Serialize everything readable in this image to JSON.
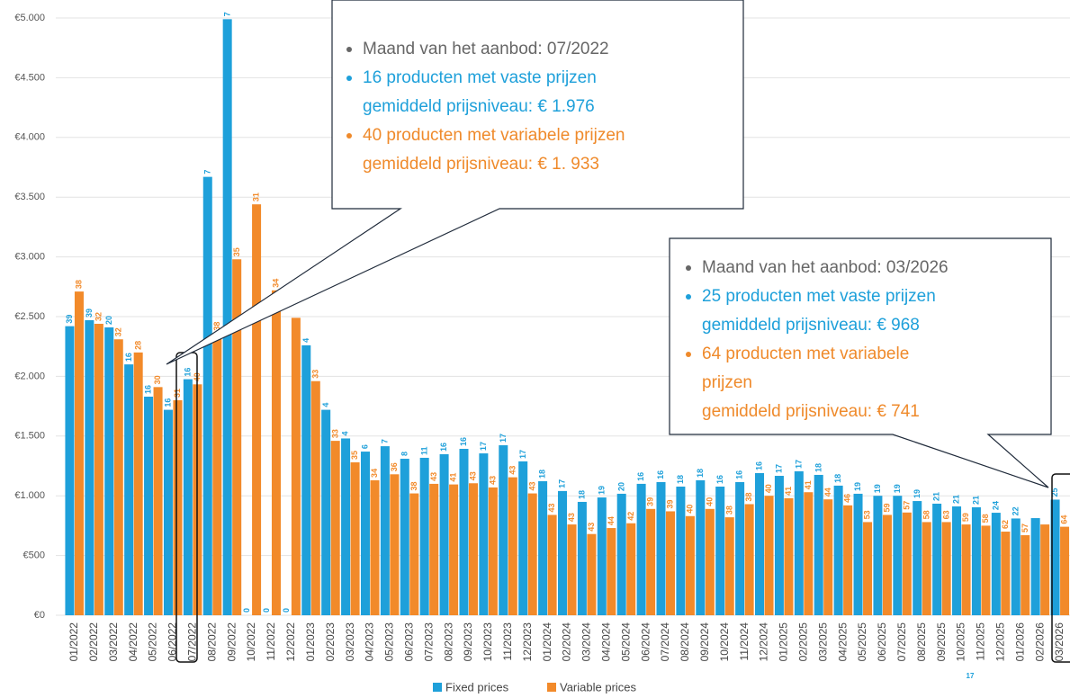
{
  "chart_data": {
    "type": "bar",
    "categories": [
      "01/2022",
      "02/2022",
      "03/2022",
      "04/2022",
      "05/2022",
      "06/2022",
      "07/2022",
      "08/2022",
      "09/2022",
      "10/2022",
      "11/2022",
      "12/2022",
      "01/2023",
      "02/2023",
      "03/2023",
      "04/2023",
      "05/2023",
      "06/2023",
      "07/2023",
      "08/2023",
      "09/2023",
      "10/2023",
      "11/2023",
      "12/2023",
      "01/2024",
      "02/2024",
      "03/2024",
      "04/2024",
      "05/2024",
      "06/2024",
      "07/2024",
      "08/2024",
      "09/2024",
      "10/2024",
      "11/2024",
      "12/2024",
      "01/2025",
      "02/2025",
      "03/2025",
      "04/2025",
      "05/2025",
      "06/2025",
      "07/2025",
      "08/2025",
      "09/2025",
      "10/2025",
      "11/2025",
      "12/2025",
      "01/2026",
      "02/2026",
      "03/2026"
    ],
    "series": [
      {
        "name": "Fixed prices",
        "color": "#1ea0da",
        "values": [
          2420,
          2470,
          2410,
          2100,
          1830,
          1720,
          1976,
          3670,
          4990,
          0,
          0,
          0,
          2260,
          1720,
          1480,
          1370,
          1415,
          1310,
          1318,
          1348,
          1393,
          1355,
          1423,
          1288,
          1122,
          1040,
          949,
          986,
          1017,
          1100,
          1115,
          1077,
          1130,
          1077,
          1115,
          1190,
          1167,
          1205,
          1175,
          1085,
          1017,
          1000,
          1000,
          956,
          934,
          911,
          904,
          858,
          810,
          813,
          968
        ],
        "counts": [
          39,
          39,
          20,
          16,
          16,
          16,
          16,
          7,
          7,
          0,
          0,
          0,
          4,
          4,
          4,
          6,
          7,
          8,
          11,
          16,
          16,
          17,
          17,
          17,
          18,
          17,
          18,
          19,
          20,
          16,
          16,
          18,
          18,
          16,
          16,
          16,
          17,
          17,
          18,
          18,
          19,
          19,
          19,
          19,
          21,
          21,
          21,
          24,
          22,
          null,
          25
        ]
      },
      {
        "name": "Variable prices",
        "color": "#f28a2a",
        "values": [
          2710,
          2440,
          2310,
          2200,
          1910,
          1800,
          1933,
          2360,
          2980,
          3440,
          2720,
          2490,
          1960,
          1460,
          1280,
          1130,
          1180,
          1020,
          1100,
          1095,
          1105,
          1070,
          1155,
          1020,
          840,
          760,
          680,
          730,
          770,
          890,
          870,
          830,
          890,
          820,
          930,
          1000,
          980,
          1030,
          970,
          920,
          780,
          840,
          860,
          780,
          780,
          760,
          750,
          700,
          670,
          760,
          741
        ],
        "counts": [
          38,
          32,
          32,
          28,
          30,
          31,
          40,
          38,
          35,
          31,
          34,
          null,
          33,
          33,
          35,
          34,
          36,
          38,
          43,
          41,
          43,
          43,
          43,
          43,
          43,
          43,
          43,
          44,
          42,
          39,
          39,
          40,
          40,
          38,
          38,
          40,
          41,
          41,
          44,
          46,
          53,
          59,
          57,
          58,
          63,
          59,
          58,
          62,
          57,
          null,
          64
        ]
      }
    ],
    "ylim": [
      0,
      5000
    ],
    "yticks": [
      {
        "value": 0,
        "label": "€0"
      },
      {
        "value": 500,
        "label": "€500"
      },
      {
        "value": 1000,
        "label": "€1.000"
      },
      {
        "value": 1500,
        "label": "€1.500"
      },
      {
        "value": 2000,
        "label": "€2.000"
      },
      {
        "value": 2500,
        "label": "€2.500"
      },
      {
        "value": 3000,
        "label": "€3.000"
      },
      {
        "value": 3500,
        "label": "€3.500"
      },
      {
        "value": 4000,
        "label": "€4.000"
      },
      {
        "value": 4500,
        "label": "€4.500"
      },
      {
        "value": 5000,
        "label": "€5.000"
      }
    ],
    "grid": true,
    "page_number": "17",
    "annotations": [
      {
        "items": [
          {
            "lines": [
              "Maand van het aanbod: 07/2022"
            ],
            "color": "#666666"
          },
          {
            "lines": [
              "16 producten met vaste prijzen",
              "gemiddeld prijsniveau: € 1.976"
            ],
            "color": "#1ea0da"
          },
          {
            "lines": [
              "40 producten met variabele prijzen",
              "gemiddeld prijsniveau: € 1. 933"
            ],
            "color": "#ef8a2b"
          }
        ]
      },
      {
        "items": [
          {
            "lines": [
              "Maand van het aanbod: 03/2026"
            ],
            "color": "#666666"
          },
          {
            "lines": [
              "25 producten met vaste prijzen",
              "gemiddeld prijsniveau: € 968"
            ],
            "color": "#1ea0da"
          },
          {
            "lines": [
              "64 producten met variabele",
              "prijzen",
              "gemiddeld prijsniveau: € 741"
            ],
            "color": "#ef8a2b"
          }
        ]
      }
    ]
  }
}
